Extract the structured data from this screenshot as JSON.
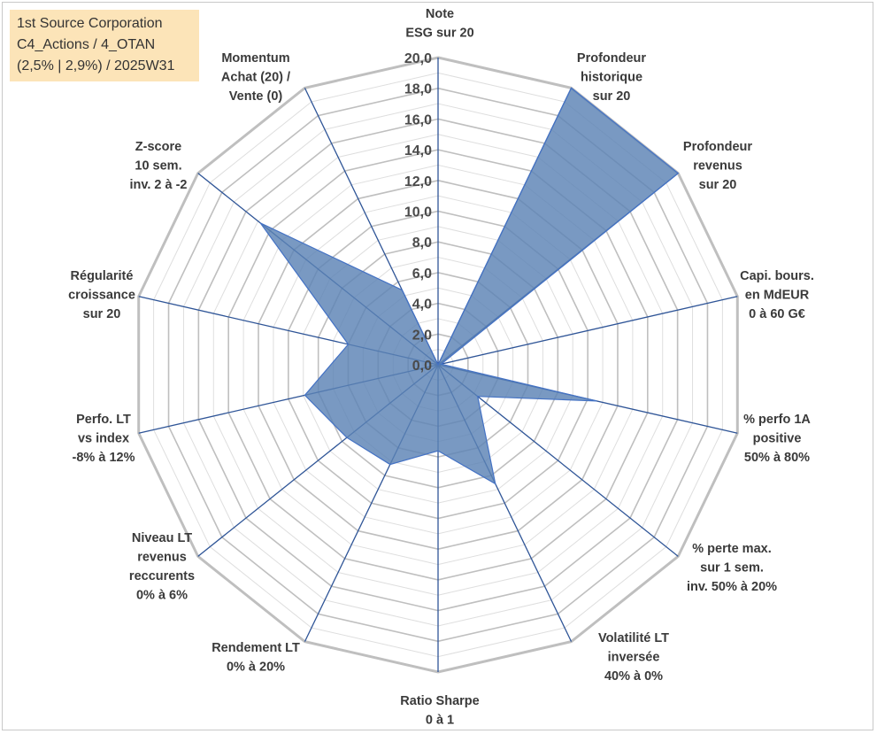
{
  "title_box": {
    "line1": "1st Source Corporation",
    "line2": "C4_Actions / 4_OTAN",
    "line3": "(2,5% | 2,9%) / 2025W31",
    "background": "#fce4b8"
  },
  "chart_data": {
    "type": "radar",
    "rmin": 0,
    "rmax": 20,
    "tick_step": 2,
    "ticks": [
      "0,0",
      "2,0",
      "4,0",
      "6,0",
      "8,0",
      "10,0",
      "12,0",
      "14,0",
      "16,0",
      "18,0",
      "20,0"
    ],
    "fill_color": "#5b82b4",
    "grid_color": "#c0c0c0",
    "spoke_color": "#2f5597",
    "axes": [
      {
        "label": [
          "Note",
          "ESG sur 20"
        ],
        "value": 0
      },
      {
        "label": [
          "Profondeur",
          "historique",
          "sur 20"
        ],
        "value": 20
      },
      {
        "label": [
          "Profondeur",
          "revenus",
          "sur 20"
        ],
        "value": 20
      },
      {
        "label": [
          "Capi. bours.",
          "en MdEUR",
          "0 à 60 G€"
        ],
        "value": 0.2
      },
      {
        "label": [
          "% perfo 1A",
          "positive",
          "50% à 80%"
        ],
        "value": 10.6
      },
      {
        "label": [
          "% perte max.",
          "sur 1 sem.",
          "inv. 50% à 20%"
        ],
        "value": 3.3
      },
      {
        "label": [
          "Volatilité LT",
          "inversée",
          "40% à 0%"
        ],
        "value": 8.6
      },
      {
        "label": [
          "Ratio Sharpe",
          "0 à 1"
        ],
        "value": 5.6
      },
      {
        "label": [
          "Rendement LT",
          "0% à 20%"
        ],
        "value": 7.2
      },
      {
        "label": [
          "Niveau LT",
          "revenus",
          "reccurents",
          "0% à 6%"
        ],
        "value": 7.6
      },
      {
        "label": [
          "Perfo. LT",
          "vs index",
          "-8% à 12%"
        ],
        "value": 8.9
      },
      {
        "label": [
          "Régularité",
          "croissance",
          "sur 20"
        ],
        "value": 6
      },
      {
        "label": [
          "Z-score",
          "10 sem.",
          "inv. 2 à -2"
        ],
        "value": 14.8
      },
      {
        "label": [
          "Momentum",
          "Achat (20) /",
          "Vente (0)"
        ],
        "value": 5.4
      }
    ]
  }
}
